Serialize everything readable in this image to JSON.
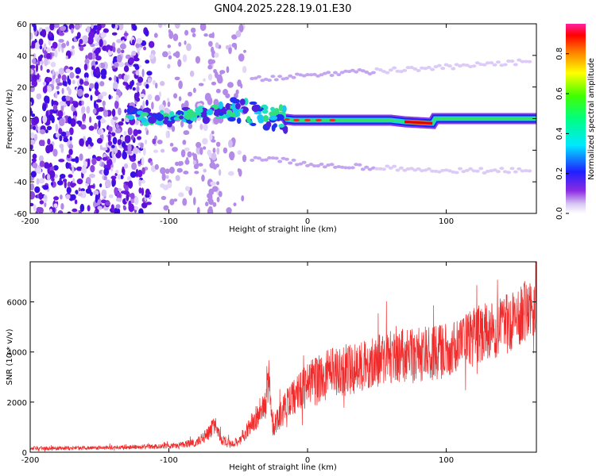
{
  "title": "GN04.2025.228.19.01.E30",
  "chart_data": [
    {
      "type": "heatmap",
      "xlabel": "Height of straight line (km)",
      "ylabel": "Frequency (Hz)",
      "xlim": [
        -200,
        165
      ],
      "ylim": [
        -60,
        60
      ],
      "x_ticks": [
        -200,
        -100,
        0,
        100
      ],
      "y_ticks": [
        60,
        40,
        20,
        0,
        -20,
        -40,
        -60
      ],
      "grid": false,
      "colorbar": {
        "label": "Normalized spectral amplitude",
        "range": [
          0,
          0.95
        ],
        "ticks": [
          0.0,
          0.2,
          0.4,
          0.6,
          0.8
        ]
      },
      "features": {
        "main_band_center_hz": [
          [
            -130,
            2
          ],
          [
            -110,
            1
          ],
          [
            -100,
            0
          ],
          [
            -90,
            2
          ],
          [
            -80,
            3
          ],
          [
            -70,
            3
          ],
          [
            -60,
            5
          ],
          [
            -50,
            5
          ],
          [
            -40,
            3
          ],
          [
            -30,
            1
          ],
          [
            -20,
            0
          ],
          [
            -10,
            -1
          ],
          [
            0,
            -1
          ],
          [
            20,
            -1
          ],
          [
            40,
            -1
          ],
          [
            60,
            -1
          ],
          [
            70,
            -2
          ],
          [
            90,
            -3
          ],
          [
            92,
            0
          ],
          [
            120,
            0
          ],
          [
            165,
            0
          ]
        ],
        "upper_sideband_hz": [
          [
            -30,
            25
          ],
          [
            0,
            28
          ],
          [
            50,
            30
          ],
          [
            90,
            32
          ],
          [
            160,
            36
          ]
        ],
        "lower_sideband_hz": [
          [
            -30,
            -25
          ],
          [
            0,
            -29
          ],
          [
            50,
            -31
          ],
          [
            90,
            -33
          ],
          [
            160,
            -33
          ]
        ],
        "hot_segment_x": [
          70,
          90
        ]
      }
    },
    {
      "type": "line",
      "xlabel": "Height of straight line (km)",
      "ylabel": "SNR (10 * v/v)",
      "xlim": [
        -200,
        165
      ],
      "ylim": [
        0,
        7600
      ],
      "x_ticks": [
        -200,
        -100,
        0,
        100
      ],
      "y_ticks": [
        0,
        2000,
        4000,
        6000
      ],
      "grid": false,
      "series": [
        {
          "color": "#ef2b2b",
          "x": [
            -200,
            -175,
            -150,
            -125,
            -100,
            -90,
            -80,
            -72,
            -68,
            -62,
            -55,
            -48,
            -45,
            -40,
            -35,
            -30,
            -28,
            -25,
            -20,
            -15,
            -10,
            -5,
            0,
            10,
            20,
            30,
            40,
            50,
            60,
            70,
            80,
            90,
            100,
            110,
            120,
            130,
            140,
            150,
            160,
            165
          ],
          "values": [
            150,
            160,
            180,
            200,
            240,
            300,
            400,
            700,
            1100,
            500,
            300,
            500,
            800,
            1200,
            1500,
            1900,
            3000,
            900,
            1400,
            1900,
            2200,
            2400,
            2700,
            3000,
            3200,
            3300,
            3500,
            3700,
            3800,
            3850,
            3900,
            3950,
            4100,
            4300,
            4600,
            4800,
            5000,
            5300,
            5800,
            6000
          ],
          "spread": [
            100,
            100,
            100,
            110,
            130,
            160,
            200,
            350,
            450,
            250,
            200,
            300,
            400,
            550,
            650,
            750,
            1100,
            500,
            700,
            800,
            900,
            1000,
            1100,
            1200,
            1300,
            1300,
            1300,
            1350,
            1350,
            1350,
            1350,
            1400,
            1400,
            1400,
            1450,
            1450,
            1450,
            1500,
            1550,
            1600
          ]
        }
      ]
    }
  ]
}
